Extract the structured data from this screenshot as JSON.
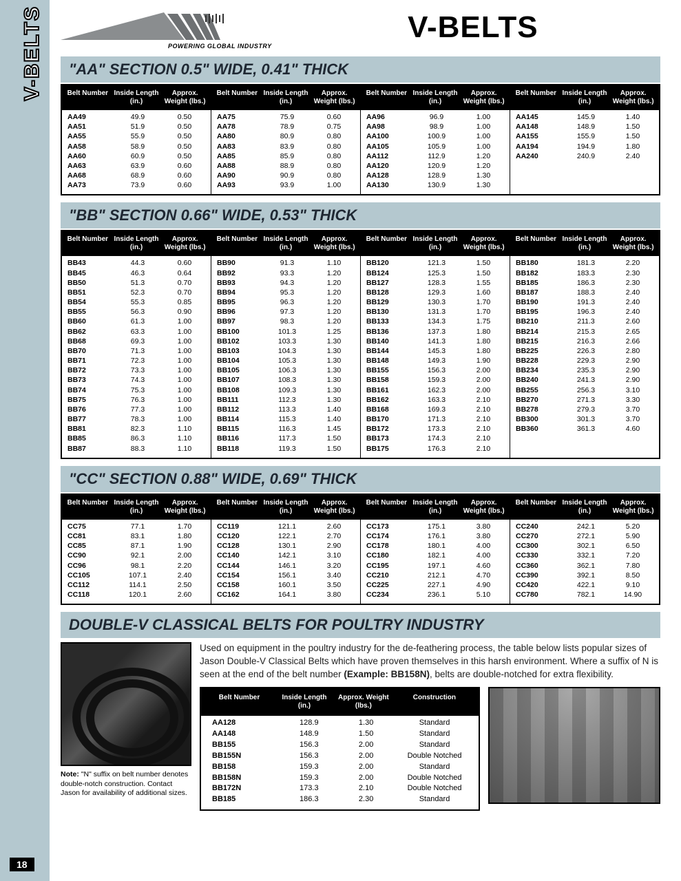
{
  "page": {
    "side_label": "V-BELTS",
    "page_number": "18",
    "tagline": "POWERING GLOBAL INDUSTRY",
    "title": "V-BELTS"
  },
  "table_headers": {
    "h1": "Belt\nNumber",
    "h2": "Inside\nLength\n(in.)",
    "h3": "Approx.\nWeight\n(lbs.)"
  },
  "sections": [
    {
      "title": "\"AA\" SECTION 0.5\" WIDE, 0.41\" THICK",
      "columns": [
        [
          [
            "AA49",
            "49.9",
            "0.50"
          ],
          [
            "AA51",
            "51.9",
            "0.50"
          ],
          [
            "AA55",
            "55.9",
            "0.50"
          ],
          [
            "AA58",
            "58.9",
            "0.50"
          ],
          [
            "AA60",
            "60.9",
            "0.50"
          ],
          [
            "AA63",
            "63.9",
            "0.60"
          ],
          [
            "AA68",
            "68.9",
            "0.60"
          ],
          [
            "AA73",
            "73.9",
            "0.60"
          ]
        ],
        [
          [
            "AA75",
            "75.9",
            "0.60"
          ],
          [
            "AA78",
            "78.9",
            "0.75"
          ],
          [
            "AA80",
            "80.9",
            "0.80"
          ],
          [
            "AA83",
            "83.9",
            "0.80"
          ],
          [
            "AA85",
            "85.9",
            "0.80"
          ],
          [
            "AA88",
            "88.9",
            "0.80"
          ],
          [
            "AA90",
            "90.9",
            "0.80"
          ],
          [
            "AA93",
            "93.9",
            "1.00"
          ]
        ],
        [
          [
            "AA96",
            "96.9",
            "1.00"
          ],
          [
            "AA98",
            "98.9",
            "1.00"
          ],
          [
            "AA100",
            "100.9",
            "1.00"
          ],
          [
            "AA105",
            "105.9",
            "1.00"
          ],
          [
            "AA112",
            "112.9",
            "1.20"
          ],
          [
            "AA120",
            "120.9",
            "1.20"
          ],
          [
            "AA128",
            "128.9",
            "1.30"
          ],
          [
            "AA130",
            "130.9",
            "1.30"
          ]
        ],
        [
          [
            "AA145",
            "145.9",
            "1.40"
          ],
          [
            "AA148",
            "148.9",
            "1.50"
          ],
          [
            "AA155",
            "155.9",
            "1.50"
          ],
          [
            "AA194",
            "194.9",
            "1.80"
          ],
          [
            "AA240",
            "240.9",
            "2.40"
          ]
        ]
      ]
    },
    {
      "title": "\"BB\" SECTION 0.66\" WIDE, 0.53\" THICK",
      "columns": [
        [
          [
            "BB43",
            "44.3",
            "0.60"
          ],
          [
            "BB45",
            "46.3",
            "0.64"
          ],
          [
            "BB50",
            "51.3",
            "0.70"
          ],
          [
            "BB51",
            "52.3",
            "0.70"
          ],
          [
            "BB54",
            "55.3",
            "0.85"
          ],
          [
            "BB55",
            "56.3",
            "0.90"
          ],
          [
            "BB60",
            "61.3",
            "1.00"
          ],
          [
            "BB62",
            "63.3",
            "1.00"
          ],
          [
            "BB68",
            "69.3",
            "1.00"
          ],
          [
            "BB70",
            "71.3",
            "1.00"
          ],
          [
            "BB71",
            "72.3",
            "1.00"
          ],
          [
            "BB72",
            "73.3",
            "1.00"
          ],
          [
            "BB73",
            "74.3",
            "1.00"
          ],
          [
            "BB74",
            "75.3",
            "1.00"
          ],
          [
            "BB75",
            "76.3",
            "1.00"
          ],
          [
            "BB76",
            "77.3",
            "1.00"
          ],
          [
            "BB77",
            "78.3",
            "1.00"
          ],
          [
            "BB81",
            "82.3",
            "1.10"
          ],
          [
            "BB85",
            "86.3",
            "1.10"
          ],
          [
            "BB87",
            "88.3",
            "1.10"
          ]
        ],
        [
          [
            "BB90",
            "91.3",
            "1.10"
          ],
          [
            "BB92",
            "93.3",
            "1.20"
          ],
          [
            "BB93",
            "94.3",
            "1.20"
          ],
          [
            "BB94",
            "95.3",
            "1.20"
          ],
          [
            "BB95",
            "96.3",
            "1.20"
          ],
          [
            "BB96",
            "97.3",
            "1.20"
          ],
          [
            "BB97",
            "98.3",
            "1.20"
          ],
          [
            "BB100",
            "101.3",
            "1.25"
          ],
          [
            "BB102",
            "103.3",
            "1.30"
          ],
          [
            "BB103",
            "104.3",
            "1.30"
          ],
          [
            "BB104",
            "105.3",
            "1.30"
          ],
          [
            "BB105",
            "106.3",
            "1.30"
          ],
          [
            "BB107",
            "108.3",
            "1.30"
          ],
          [
            "BB108",
            "109.3",
            "1.30"
          ],
          [
            "BB111",
            "112.3",
            "1.30"
          ],
          [
            "BB112",
            "113.3",
            "1.40"
          ],
          [
            "BB114",
            "115.3",
            "1.40"
          ],
          [
            "BB115",
            "116.3",
            "1.45"
          ],
          [
            "BB116",
            "117.3",
            "1.50"
          ],
          [
            "BB118",
            "119.3",
            "1.50"
          ]
        ],
        [
          [
            "BB120",
            "121.3",
            "1.50"
          ],
          [
            "BB124",
            "125.3",
            "1.50"
          ],
          [
            "BB127",
            "128.3",
            "1.55"
          ],
          [
            "BB128",
            "129.3",
            "1.60"
          ],
          [
            "BB129",
            "130.3",
            "1.70"
          ],
          [
            "BB130",
            "131.3",
            "1.70"
          ],
          [
            "BB133",
            "134.3",
            "1.75"
          ],
          [
            "BB136",
            "137.3",
            "1.80"
          ],
          [
            "BB140",
            "141.3",
            "1.80"
          ],
          [
            "BB144",
            "145.3",
            "1.80"
          ],
          [
            "BB148",
            "149.3",
            "1.90"
          ],
          [
            "BB155",
            "156.3",
            "2.00"
          ],
          [
            "BB158",
            "159.3",
            "2.00"
          ],
          [
            "BB161",
            "162.3",
            "2.00"
          ],
          [
            "BB162",
            "163.3",
            "2.10"
          ],
          [
            "BB168",
            "169.3",
            "2.10"
          ],
          [
            "BB170",
            "171.3",
            "2.10"
          ],
          [
            "BB172",
            "173.3",
            "2.10"
          ],
          [
            "BB173",
            "174.3",
            "2.10"
          ],
          [
            "BB175",
            "176.3",
            "2.10"
          ]
        ],
        [
          [
            "BB180",
            "181.3",
            "2.20"
          ],
          [
            "BB182",
            "183.3",
            "2.30"
          ],
          [
            "BB185",
            "186.3",
            "2.30"
          ],
          [
            "BB187",
            "188.3",
            "2.40"
          ],
          [
            "BB190",
            "191.3",
            "2.40"
          ],
          [
            "BB195",
            "196.3",
            "2.40"
          ],
          [
            "BB210",
            "211.3",
            "2.60"
          ],
          [
            "BB214",
            "215.3",
            "2.65"
          ],
          [
            "BB215",
            "216.3",
            "2.66"
          ],
          [
            "BB225",
            "226.3",
            "2.80"
          ],
          [
            "BB228",
            "229.3",
            "2.90"
          ],
          [
            "BB234",
            "235.3",
            "2.90"
          ],
          [
            "BB240",
            "241.3",
            "2.90"
          ],
          [
            "BB255",
            "256.3",
            "3.10"
          ],
          [
            "BB270",
            "271.3",
            "3.30"
          ],
          [
            "BB278",
            "279.3",
            "3.70"
          ],
          [
            "BB300",
            "301.3",
            "3.70"
          ],
          [
            "BB360",
            "361.3",
            "4.60"
          ]
        ]
      ]
    },
    {
      "title": "\"CC\" SECTION 0.88\" WIDE, 0.69\" THICK",
      "columns": [
        [
          [
            "CC75",
            "77.1",
            "1.70"
          ],
          [
            "CC81",
            "83.1",
            "1.80"
          ],
          [
            "CC85",
            "87.1",
            "1.90"
          ],
          [
            "CC90",
            "92.1",
            "2.00"
          ],
          [
            "CC96",
            "98.1",
            "2.20"
          ],
          [
            "CC105",
            "107.1",
            "2.40"
          ],
          [
            "CC112",
            "114.1",
            "2.50"
          ],
          [
            "CC118",
            "120.1",
            "2.60"
          ]
        ],
        [
          [
            "CC119",
            "121.1",
            "2.60"
          ],
          [
            "CC120",
            "122.1",
            "2.70"
          ],
          [
            "CC128",
            "130.1",
            "2.90"
          ],
          [
            "CC140",
            "142.1",
            "3.10"
          ],
          [
            "CC144",
            "146.1",
            "3.20"
          ],
          [
            "CC154",
            "156.1",
            "3.40"
          ],
          [
            "CC158",
            "160.1",
            "3.50"
          ],
          [
            "CC162",
            "164.1",
            "3.80"
          ]
        ],
        [
          [
            "CC173",
            "175.1",
            "3.80"
          ],
          [
            "CC174",
            "176.1",
            "3.80"
          ],
          [
            "CC178",
            "180.1",
            "4.00"
          ],
          [
            "CC180",
            "182.1",
            "4.00"
          ],
          [
            "CC195",
            "197.1",
            "4.60"
          ],
          [
            "CC210",
            "212.1",
            "4.70"
          ],
          [
            "CC225",
            "227.1",
            "4.90"
          ],
          [
            "CC234",
            "236.1",
            "5.10"
          ]
        ],
        [
          [
            "CC240",
            "242.1",
            "5.20"
          ],
          [
            "CC270",
            "272.1",
            "5.90"
          ],
          [
            "CC300",
            "302.1",
            "6.50"
          ],
          [
            "CC330",
            "332.1",
            "7.20"
          ],
          [
            "CC360",
            "362.1",
            "7.80"
          ],
          [
            "CC390",
            "392.1",
            "8.50"
          ],
          [
            "CC420",
            "422.1",
            "9.10"
          ],
          [
            "CC780",
            "782.1",
            "14.90"
          ]
        ]
      ]
    }
  ],
  "poultry": {
    "title": "DOUBLE-V CLASSICAL BELTS FOR POULTRY INDUSTRY",
    "note_label": "Note:",
    "note_text": " \"N\" suffix on belt number denotes double-notch construction. Contact Jason for availability of additional sizes.",
    "desc_pre": "Used on equipment in the poultry industry for the de-feathering process, the table below lists popular sizes of Jason Double-V Classical Belts which have proven themselves in this harsh environment. Where a suffix of N is seen at the end of the belt number ",
    "desc_bold": "(Example: BB158N)",
    "desc_post": ", belts are double-notched for extra flexibility.",
    "headers": [
      "Belt\nNumber",
      "Inside\nLength\n(in.)",
      "Approx.\nWeight\n(lbs.)",
      "Construction"
    ],
    "rows": [
      [
        "AA128",
        "128.9",
        "1.30",
        "Standard"
      ],
      [
        "AA148",
        "148.9",
        "1.50",
        "Standard"
      ],
      [
        "BB155",
        "156.3",
        "2.00",
        "Standard"
      ],
      [
        "BB155N",
        "156.3",
        "2.00",
        "Double Notched"
      ],
      [
        "BB158",
        "159.3",
        "2.00",
        "Standard"
      ],
      [
        "BB158N",
        "159.3",
        "2.00",
        "Double Notched"
      ],
      [
        "BB172N",
        "173.3",
        "2.10",
        "Double Notched"
      ],
      [
        "BB185",
        "186.3",
        "2.30",
        "Standard"
      ]
    ]
  }
}
